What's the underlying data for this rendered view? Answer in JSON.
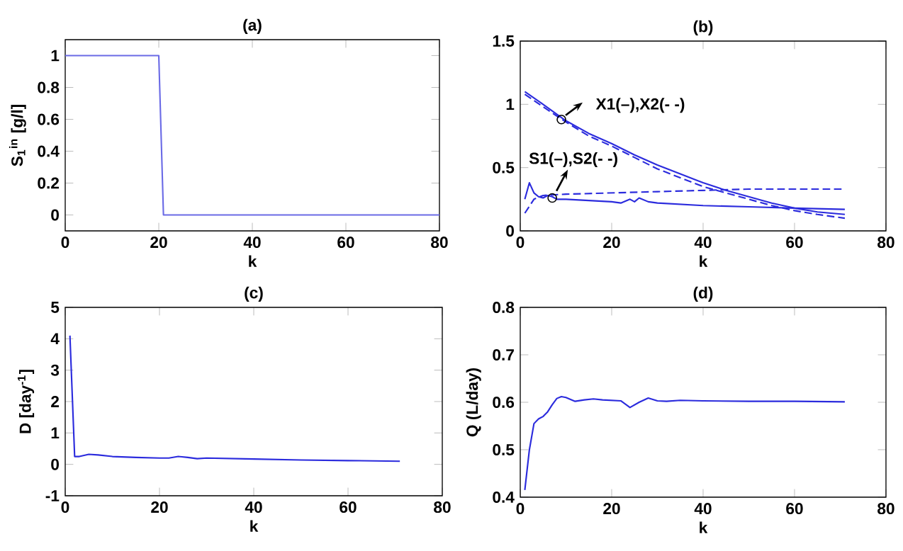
{
  "chart_data": [
    {
      "type": "line",
      "title": "(a)",
      "xlabel": "k",
      "ylabel": "S$_{1}$$^{in}$ [g/l]",
      "x": [
        0,
        20,
        21,
        80
      ],
      "values": [
        1,
        1,
        0,
        0
      ],
      "color": "#6b6be6",
      "xlim": [
        0,
        80
      ],
      "xticks": [
        0,
        20,
        40,
        60,
        80
      ],
      "ylim": [
        -0.1,
        1.1
      ],
      "yticks": [
        0,
        0.2,
        0.4,
        0.6,
        0.8,
        1
      ]
    },
    {
      "type": "line",
      "title": "(b)",
      "xlabel": "k",
      "xlim": [
        0,
        80
      ],
      "xticks": [
        0,
        20,
        40,
        60,
        80
      ],
      "ylim": [
        0,
        1.5
      ],
      "yticks": [
        0,
        0.5,
        1,
        1.5
      ],
      "series": [
        {
          "color": "#2b2bdd",
          "line_style": "solid",
          "x": [
            1,
            5,
            10,
            15,
            20,
            25,
            30,
            35,
            40,
            45,
            50,
            55,
            60,
            65,
            71
          ],
          "values": [
            1.1,
            1.0,
            0.87,
            0.77,
            0.69,
            0.6,
            0.52,
            0.45,
            0.38,
            0.32,
            0.27,
            0.22,
            0.18,
            0.15,
            0.13
          ]
        },
        {
          "color": "#2b2bdd",
          "line_style": "dashed",
          "x": [
            1,
            5,
            10,
            15,
            20,
            25,
            30,
            35,
            40,
            45,
            50,
            55,
            60,
            65,
            71
          ],
          "values": [
            1.08,
            0.98,
            0.86,
            0.75,
            0.67,
            0.58,
            0.49,
            0.42,
            0.35,
            0.3,
            0.25,
            0.2,
            0.16,
            0.13,
            0.1
          ]
        },
        {
          "color": "#2b2bdd",
          "line_style": "solid",
          "x": [
            1,
            2,
            3,
            4,
            5,
            6,
            7,
            8,
            10,
            15,
            20,
            22,
            24,
            25,
            26,
            28,
            30,
            40,
            50,
            60,
            71
          ],
          "values": [
            0.25,
            0.38,
            0.3,
            0.27,
            0.26,
            0.28,
            0.27,
            0.25,
            0.25,
            0.24,
            0.23,
            0.22,
            0.25,
            0.23,
            0.26,
            0.23,
            0.22,
            0.2,
            0.19,
            0.18,
            0.17
          ]
        },
        {
          "color": "#2b2bdd",
          "line_style": "dashed",
          "x": [
            1,
            3,
            5,
            10,
            20,
            30,
            40,
            50,
            60,
            71
          ],
          "values": [
            0.14,
            0.25,
            0.28,
            0.29,
            0.3,
            0.31,
            0.32,
            0.33,
            0.33,
            0.33
          ]
        }
      ],
      "annotations": [
        {
          "text": "X1(–),X2(- -)",
          "x": 9,
          "y": 0.88
        },
        {
          "text": "S1(–),S2(- -)",
          "x": 7,
          "y": 0.26
        }
      ]
    },
    {
      "type": "line",
      "title": "(c)",
      "xlabel": "k",
      "ylabel": "D [day$^{-1}$]",
      "color": "#2b2bdd",
      "x": [
        1,
        2,
        3,
        5,
        7,
        10,
        15,
        20,
        22,
        24,
        26,
        28,
        30,
        40,
        50,
        60,
        71
      ],
      "values": [
        4.1,
        0.25,
        0.25,
        0.32,
        0.3,
        0.25,
        0.22,
        0.2,
        0.2,
        0.25,
        0.22,
        0.18,
        0.2,
        0.17,
        0.14,
        0.12,
        0.1
      ],
      "xlim": [
        0,
        80
      ],
      "xticks": [
        0,
        20,
        40,
        60,
        80
      ],
      "ylim": [
        -1,
        5
      ],
      "yticks": [
        -1,
        0,
        1,
        2,
        3,
        4,
        5
      ]
    },
    {
      "type": "line",
      "title": "(d)",
      "xlabel": "k",
      "ylabel": "Q (L/day)",
      "color": "#2b2bdd",
      "x": [
        1,
        2,
        3,
        4,
        5,
        6,
        7,
        8,
        9,
        10,
        12,
        14,
        16,
        18,
        20,
        22,
        24,
        26,
        28,
        30,
        32,
        35,
        40,
        50,
        60,
        71
      ],
      "values": [
        0.415,
        0.5,
        0.555,
        0.565,
        0.57,
        0.58,
        0.595,
        0.608,
        0.612,
        0.61,
        0.602,
        0.605,
        0.607,
        0.605,
        0.604,
        0.603,
        0.589,
        0.6,
        0.609,
        0.603,
        0.602,
        0.604,
        0.603,
        0.602,
        0.602,
        0.601
      ],
      "xlim": [
        0,
        80
      ],
      "xticks": [
        0,
        20,
        40,
        60,
        80
      ],
      "ylim": [
        0.4,
        0.8
      ],
      "yticks": [
        0.4,
        0.5,
        0.6,
        0.7,
        0.8
      ]
    }
  ]
}
